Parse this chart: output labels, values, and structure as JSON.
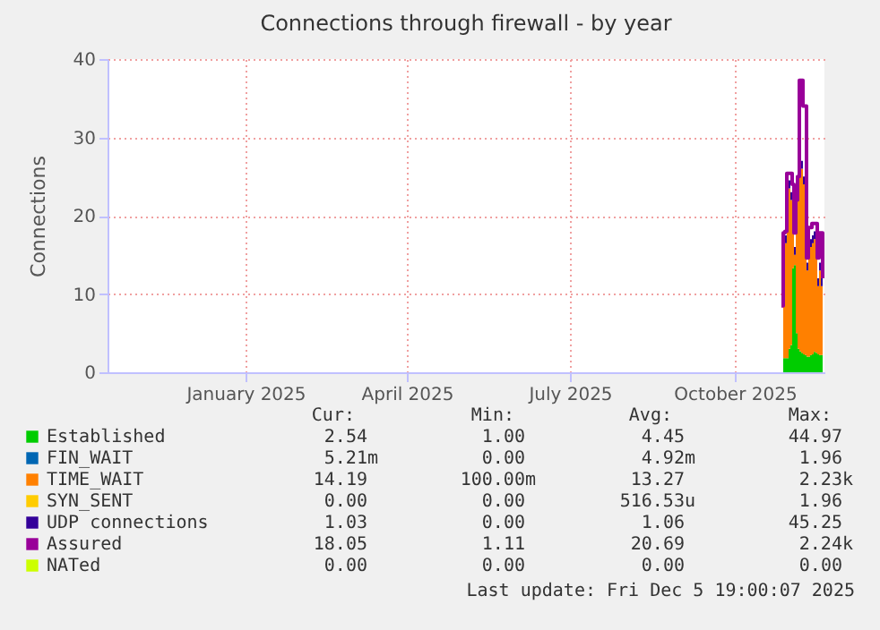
{
  "chart_data": {
    "type": "area",
    "title": "Connections through firewall - by year",
    "ylabel": "Connections",
    "x": [
      "2025-11-11",
      "2025-11-12",
      "2025-11-13",
      "2025-11-14",
      "2025-11-15",
      "2025-11-16",
      "2025-11-17",
      "2025-11-18",
      "2025-11-19",
      "2025-11-20",
      "2025-11-21",
      "2025-11-22",
      "2025-11-23",
      "2025-11-24",
      "2025-11-25",
      "2025-11-26",
      "2025-11-27",
      "2025-11-28",
      "2025-11-29",
      "2025-11-30",
      "2025-12-01",
      "2025-12-02",
      "2025-12-03",
      "2025-12-04"
    ],
    "xlim": [
      "2024-10-31",
      "2025-12-05"
    ],
    "xticks": [
      {
        "value": "2025-01-16",
        "label": "January 2025"
      },
      {
        "value": "2025-04-16",
        "label": "April 2025"
      },
      {
        "value": "2025-07-16",
        "label": "July 2025"
      },
      {
        "value": "2025-10-16",
        "label": "October 2025"
      }
    ],
    "ylim": [
      0,
      40
    ],
    "yticks": [
      0,
      10,
      20,
      30,
      40
    ],
    "grid": true,
    "legend": "bottom",
    "stacked": true,
    "series": [
      {
        "name": "Established",
        "color": "#00cc00",
        "values": [
          null,
          1.8,
          1.8,
          1.8,
          3,
          3.5,
          13.3,
          13.7,
          5,
          3,
          2.7,
          2.5,
          2.3,
          2.2,
          2,
          2,
          2.2,
          2.3,
          2.6,
          2.5,
          2.3,
          2.2,
          2.2,
          2.2
        ]
      },
      {
        "name": "FIN_WAIT",
        "color": "#0066b3",
        "values": [
          null,
          null,
          null,
          null,
          null,
          null,
          null,
          null,
          null,
          null,
          null,
          null,
          null,
          null,
          null,
          null,
          null,
          null,
          null,
          null,
          null,
          null,
          null,
          null
        ]
      },
      {
        "name": "TIME_WAIT",
        "color": "#ff8000",
        "values": [
          null,
          14.2,
          14.7,
          21.2,
          20.5,
          18.5,
          7.7,
          1.3,
          14,
          20,
          26.3,
          23.5,
          21.7,
          13.8,
          11,
          14,
          13.8,
          14.2,
          14.4,
          12.5,
          8.7,
          10.8,
          8.8,
          8.8
        ]
      },
      {
        "name": "SYN_SENT",
        "color": "#ffcc00",
        "values": [
          null,
          null,
          null,
          null,
          null,
          null,
          null,
          null,
          null,
          null,
          null,
          null,
          null,
          null,
          null,
          null,
          null,
          null,
          null,
          null,
          null,
          null,
          null,
          null
        ]
      },
      {
        "name": "UDP connections",
        "color": "#330099",
        "values": [
          null,
          1,
          1,
          1,
          1,
          1,
          1,
          1,
          1,
          1,
          1,
          1,
          1,
          1,
          1,
          1,
          1,
          1,
          1,
          1,
          1,
          1,
          1,
          1
        ]
      },
      {
        "name": "Assured",
        "color": "#990099",
        "type": "line",
        "values": [
          8.5,
          17.8,
          18,
          25.4,
          25.4,
          25.4,
          24,
          17.8,
          22,
          25,
          37.3,
          37.3,
          34,
          34,
          14.6,
          18.5,
          18.5,
          19,
          19,
          19,
          14.6,
          17.8,
          17.8,
          12
        ]
      },
      {
        "name": "NATed",
        "color": "#ccff00",
        "type": "line",
        "values": [
          null,
          null,
          null,
          null,
          null,
          null,
          null,
          null,
          null,
          null,
          null,
          null,
          null,
          null,
          null,
          null,
          null,
          null,
          null,
          null,
          null,
          null,
          null,
          null
        ]
      }
    ],
    "annotations": [
      "Cur:",
      "Min:",
      "Avg:",
      "Max:",
      "2.54",
      "1.00",
      "4.45",
      "44.97",
      "5.21m",
      "0.00",
      "4.92m",
      "1.96",
      "14.19",
      "100.00m",
      "13.27",
      "2.23k",
      "0.00",
      "0.00",
      "516.53u",
      "1.96",
      "1.03",
      "0.00",
      "1.06",
      "45.25",
      "18.05",
      "1.11",
      "20.69",
      "2.24k",
      "0.00",
      "0.00",
      "0.00",
      "0.00",
      "Last update: Fri Dec  5 19:00:07 2025"
    ]
  }
}
